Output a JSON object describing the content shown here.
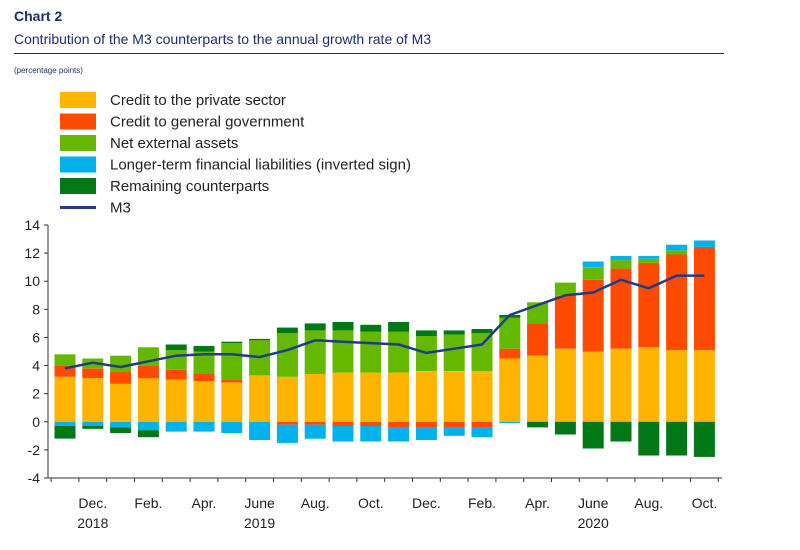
{
  "header": {
    "label": "Chart 2",
    "title": "Contribution of the M3 counterparts to the annual growth rate of M3",
    "unit": "(percentage points)"
  },
  "chart_data": {
    "type": "bar",
    "stacked": true,
    "ylim": [
      -4,
      14
    ],
    "yticks": [
      -4,
      -2,
      0,
      2,
      4,
      6,
      8,
      10,
      12,
      14
    ],
    "grid": false,
    "legend_position": "top-left",
    "x_tick_labels": [
      {
        "index": 1,
        "label": "Dec.",
        "year": "2018"
      },
      {
        "index": 3,
        "label": "Feb."
      },
      {
        "index": 5,
        "label": "Apr."
      },
      {
        "index": 7,
        "label": "June",
        "year": "2019"
      },
      {
        "index": 9,
        "label": "Aug."
      },
      {
        "index": 11,
        "label": "Oct."
      },
      {
        "index": 13,
        "label": "Dec."
      },
      {
        "index": 15,
        "label": "Feb."
      },
      {
        "index": 17,
        "label": "Apr."
      },
      {
        "index": 19,
        "label": "June",
        "year": "2020"
      },
      {
        "index": 21,
        "label": "Aug."
      },
      {
        "index": 23,
        "label": "Oct."
      }
    ],
    "bar_count": 24,
    "series": [
      {
        "name": "Credit to the private sector",
        "color": "#ffb400",
        "values": [
          3.2,
          3.1,
          2.7,
          3.1,
          3.0,
          2.9,
          2.8,
          3.3,
          3.2,
          3.4,
          3.5,
          3.5,
          3.5,
          3.6,
          3.6,
          3.6,
          4.5,
          4.7,
          5.2,
          5.0,
          5.2,
          5.3,
          5.1,
          5.1
        ]
      },
      {
        "name": "Credit to general government",
        "color": "#ff4b00",
        "values": [
          0.8,
          0.7,
          0.9,
          0.9,
          0.7,
          0.5,
          0.2,
          0.0,
          -0.2,
          -0.2,
          -0.3,
          -0.3,
          -0.4,
          -0.4,
          -0.4,
          -0.4,
          0.7,
          2.3,
          3.8,
          5.1,
          5.7,
          6.0,
          6.8,
          7.3
        ]
      },
      {
        "name": "Net external assets",
        "color": "#65b800",
        "values": [
          0.8,
          0.7,
          1.1,
          1.3,
          1.4,
          1.6,
          2.6,
          2.5,
          3.1,
          3.1,
          3.0,
          2.9,
          2.9,
          2.5,
          2.6,
          2.7,
          2.2,
          1.5,
          0.9,
          0.9,
          0.6,
          0.3,
          0.3,
          0.0
        ]
      },
      {
        "name": "Longer-term financial liabilities (inverted sign)",
        "color": "#00b1ea",
        "values": [
          -0.3,
          -0.3,
          -0.4,
          -0.6,
          -0.7,
          -0.7,
          -0.8,
          -1.3,
          -1.3,
          -1.0,
          -1.1,
          -1.1,
          -1.0,
          -0.9,
          -0.6,
          -0.7,
          -0.1,
          0.0,
          0.0,
          0.4,
          0.3,
          0.2,
          0.4,
          0.5
        ]
      },
      {
        "name": "Remaining counterparts",
        "color": "#007816",
        "values": [
          -0.9,
          -0.2,
          -0.4,
          -0.5,
          0.4,
          0.4,
          0.1,
          0.1,
          0.4,
          0.5,
          0.6,
          0.5,
          0.7,
          0.4,
          0.3,
          0.3,
          0.2,
          -0.4,
          -0.9,
          -1.9,
          -1.4,
          -2.4,
          -2.4,
          -2.5
        ]
      }
    ],
    "line": {
      "name": "M3",
      "color": "#1f3c88",
      "values": [
        3.8,
        4.2,
        3.9,
        4.3,
        4.7,
        4.8,
        4.8,
        4.6,
        5.1,
        5.8,
        5.7,
        5.6,
        5.5,
        4.9,
        5.2,
        5.5,
        7.6,
        8.3,
        9.0,
        9.2,
        10.1,
        9.5,
        10.4,
        10.4
      ]
    }
  }
}
